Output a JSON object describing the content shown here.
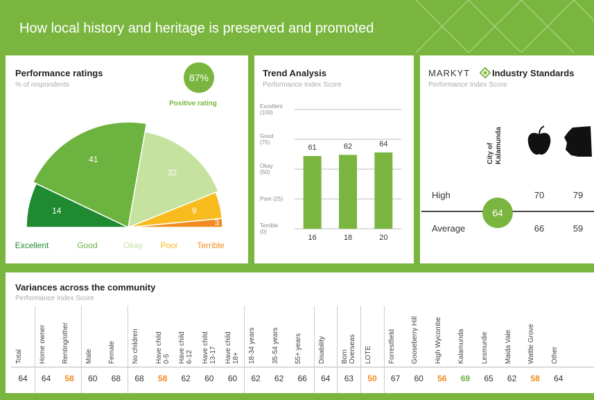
{
  "header": {
    "title": "How local history and heritage is preserved and promoted"
  },
  "performance": {
    "title": "Performance ratings",
    "subtitle": "% of respondents",
    "positive_value": "87%",
    "positive_label": "Positive rating",
    "chart_data": {
      "type": "polar-half-pie",
      "categories": [
        "Excellent",
        "Good",
        "Okay",
        "Poor",
        "Terrible"
      ],
      "values": [
        14,
        41,
        32,
        9,
        3
      ],
      "colors": [
        "#1f8a30",
        "#6db33f",
        "#c5e29e",
        "#f7bb1e",
        "#f28b1f"
      ]
    }
  },
  "trend": {
    "title": "Trend Analysis",
    "subtitle": "Performance Index Score",
    "chart_data": {
      "type": "bar",
      "categories": [
        "16",
        "18",
        "20"
      ],
      "values": [
        61,
        62,
        64
      ],
      "color": "#7ab63f",
      "ylim": [
        0,
        100
      ],
      "yticks": [
        {
          "value": 0,
          "label": "Terrible (0)"
        },
        {
          "value": 25,
          "label": "Poor (25)"
        },
        {
          "value": 50,
          "label": "Okay (50)"
        },
        {
          "value": 75,
          "label": "Good (75)"
        },
        {
          "value": 100,
          "label": "Excellent (100)"
        }
      ],
      "grid": true
    }
  },
  "standards": {
    "brand": "MARKYT",
    "title": "Industry Standards",
    "subtitle": "Performance Index Score",
    "city_label": "City of Kalamunda",
    "city_score": 64,
    "rows": [
      {
        "label": "High",
        "values": [
          70,
          79
        ]
      },
      {
        "label": "Average",
        "values": [
          66,
          59
        ]
      }
    ]
  },
  "variances": {
    "title": "Variances across the community",
    "subtitle": "Performance Index Score",
    "groups": [
      [
        {
          "label": "Total",
          "value": 64,
          "color": "#333333"
        }
      ],
      [
        {
          "label": "Home owner",
          "value": 64,
          "color": "#333333"
        },
        {
          "label": "Renting/other",
          "value": 58,
          "color": "#f28b1f"
        }
      ],
      [
        {
          "label": "Male",
          "value": 60,
          "color": "#333333"
        },
        {
          "label": "Female",
          "value": 68,
          "color": "#333333"
        }
      ],
      [
        {
          "label": "No children",
          "value": 68,
          "color": "#333333"
        },
        {
          "label": "Have child\n0-5",
          "value": 58,
          "color": "#f28b1f"
        },
        {
          "label": "Have child\n6-12",
          "value": 62,
          "color": "#333333"
        },
        {
          "label": "Have child\n13-17",
          "value": 60,
          "color": "#333333"
        },
        {
          "label": "Have child\n18+",
          "value": 60,
          "color": "#333333"
        }
      ],
      [
        {
          "label": "18-34 years",
          "value": 62,
          "color": "#333333"
        },
        {
          "label": "35-54 years",
          "value": 62,
          "color": "#333333"
        },
        {
          "label": "55+ years",
          "value": 66,
          "color": "#333333"
        }
      ],
      [
        {
          "label": "Disability",
          "value": 64,
          "color": "#333333"
        }
      ],
      [
        {
          "label": "Born\nOverseas",
          "value": 63,
          "color": "#333333"
        }
      ],
      [
        {
          "label": "LOTE",
          "value": 50,
          "color": "#f28b1f"
        }
      ],
      [
        {
          "label": "Forrestfield",
          "value": 67,
          "color": "#333333"
        },
        {
          "label": "Gooseberry Hill",
          "value": 60,
          "color": "#333333"
        },
        {
          "label": "High Wycombe",
          "value": 56,
          "color": "#f28b1f"
        },
        {
          "label": "Kalamunda",
          "value": 69,
          "color": "#6db33f"
        },
        {
          "label": "Lesmurdie",
          "value": 65,
          "color": "#333333"
        },
        {
          "label": "Maida Vale",
          "value": 62,
          "color": "#333333"
        },
        {
          "label": "Wattle Grove",
          "value": 58,
          "color": "#f28b1f"
        },
        {
          "label": "Other",
          "value": 64,
          "color": "#333333"
        }
      ]
    ]
  }
}
